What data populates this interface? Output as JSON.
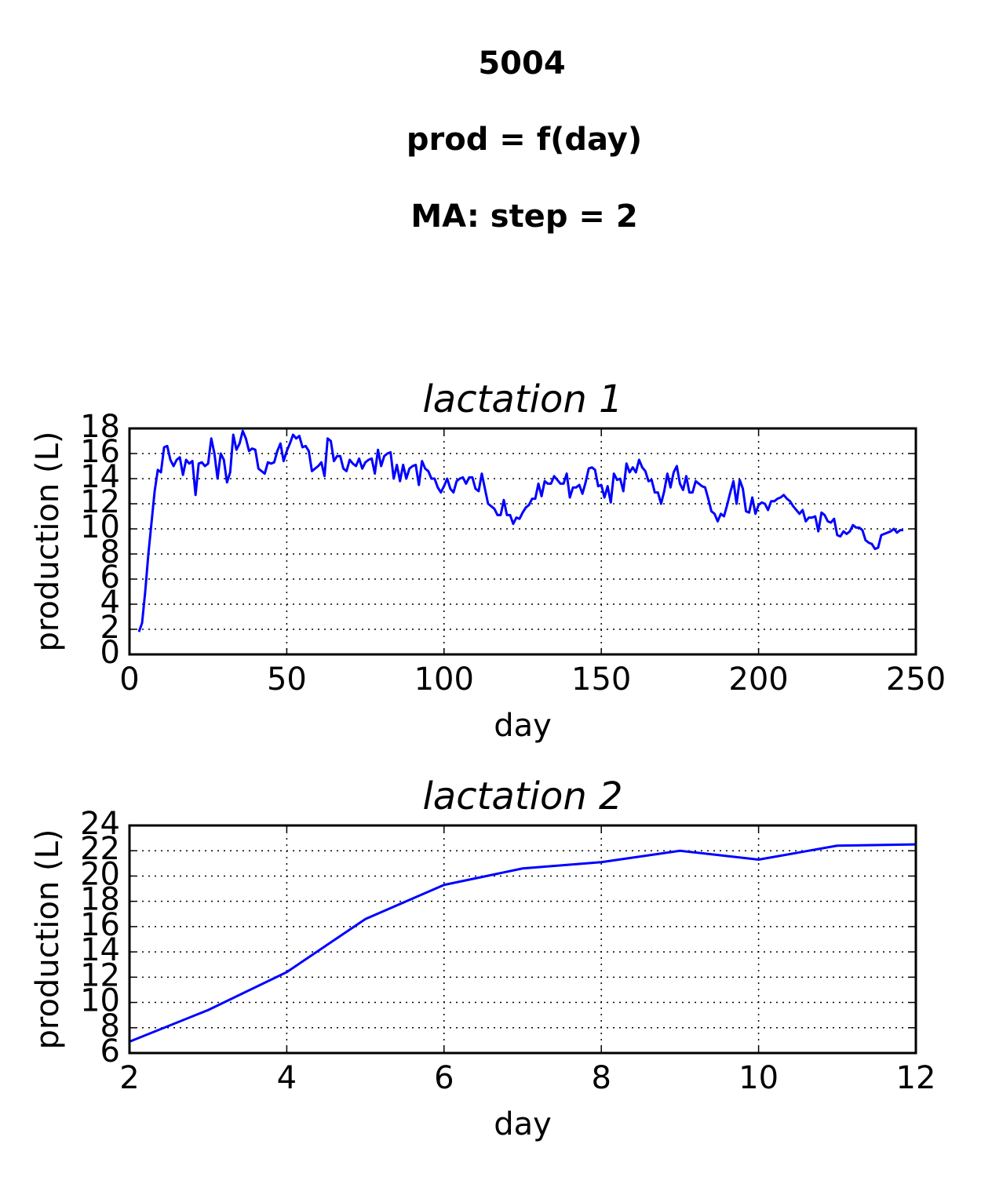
{
  "figure_title_lines": [
    "5004",
    "prod = f(day)",
    "MA: step = 2"
  ],
  "chart_data": [
    {
      "type": "line",
      "title": "lactation 1",
      "x_label": "day",
      "y_label": "production (L)",
      "color": "#0000ff",
      "grid": true,
      "xlim": [
        0,
        250
      ],
      "xticks": [
        0,
        50,
        100,
        150,
        200,
        250
      ],
      "ylim": [
        0,
        18
      ],
      "yticks": [
        0,
        2,
        4,
        6,
        8,
        10,
        12,
        14,
        16,
        18
      ],
      "x": [
        3,
        4,
        5,
        6,
        7,
        8,
        9,
        10,
        11,
        12,
        13,
        14,
        15,
        16,
        17,
        18,
        19,
        20,
        21,
        22,
        23,
        24,
        25,
        26,
        27,
        28,
        29,
        30,
        31,
        32,
        33,
        34,
        35,
        36,
        37,
        38,
        39,
        40,
        41,
        42,
        43,
        44,
        45,
        46,
        47,
        48,
        49,
        50,
        51,
        52,
        53,
        54,
        55,
        56,
        57,
        58,
        59,
        60,
        61,
        62,
        63,
        64,
        65,
        66,
        67,
        68,
        69,
        70,
        71,
        72,
        73,
        74,
        75,
        76,
        77,
        78,
        79,
        80,
        81,
        82,
        83,
        84,
        85,
        86,
        87,
        88,
        89,
        90,
        91,
        92,
        93,
        94,
        95,
        96,
        97,
        98,
        99,
        100,
        101,
        102,
        103,
        104,
        105,
        106,
        107,
        108,
        109,
        110,
        111,
        112,
        113,
        114,
        115,
        116,
        117,
        118,
        119,
        120,
        121,
        122,
        123,
        124,
        125,
        126,
        127,
        128,
        129,
        130,
        131,
        132,
        133,
        134,
        135,
        136,
        137,
        138,
        139,
        140,
        141,
        142,
        143,
        144,
        145,
        146,
        147,
        148,
        149,
        150,
        151,
        152,
        153,
        154,
        155,
        156,
        157,
        158,
        159,
        160,
        161,
        162,
        163,
        164,
        165,
        166,
        167,
        168,
        169,
        170,
        171,
        172,
        173,
        174,
        175,
        176,
        177,
        178,
        179,
        180,
        181,
        182,
        183,
        184,
        185,
        186,
        187,
        188,
        189,
        190,
        191,
        192,
        193,
        194,
        195,
        196,
        197,
        198,
        199,
        200,
        201,
        202,
        203,
        204,
        205,
        206,
        207,
        208,
        209,
        210,
        211,
        212,
        213,
        214,
        215,
        216,
        217,
        218,
        219,
        220,
        221,
        222,
        223,
        224,
        225,
        226,
        227,
        228,
        229,
        230,
        231,
        232,
        233,
        234,
        235,
        236,
        237,
        238,
        239,
        240,
        241,
        242,
        243,
        244,
        245,
        246
      ],
      "values": [
        1.8,
        2.5,
        5,
        8,
        10.5,
        13,
        14.7,
        14.5,
        16.5,
        16.6,
        15.5,
        15,
        15.5,
        15.7,
        14.3,
        15.5,
        15.2,
        15.4,
        12.7,
        15.2,
        15.3,
        15,
        15.2,
        17.2,
        16,
        14,
        16,
        15.5,
        13.7,
        14.5,
        17.5,
        16.3,
        16.8,
        17.8,
        17.2,
        16.2,
        16.4,
        16.3,
        14.8,
        14.6,
        14.4,
        15.3,
        15.2,
        15.3,
        16.2,
        16.8,
        15.4,
        16.2,
        16.8,
        17.5,
        17.2,
        17.4,
        16.5,
        16.6,
        16.2,
        14.6,
        14.8,
        15,
        15.3,
        14.2,
        17.2,
        17,
        15.4,
        15.8,
        15.8,
        14.8,
        14.6,
        15.5,
        15.2,
        15,
        15.6,
        14.8,
        15.3,
        15.5,
        15.6,
        14.4,
        16.3,
        15,
        15.8,
        16,
        16.1,
        14,
        15.1,
        13.8,
        15.1,
        14,
        14.8,
        15,
        15.1,
        13.5,
        15.4,
        14.8,
        14.6,
        14,
        14,
        13.3,
        12.9,
        13.4,
        14,
        13.2,
        12.9,
        13.8,
        14,
        14.1,
        13.6,
        14.1,
        14.1,
        13.2,
        13,
        14.4,
        13.2,
        12,
        11.8,
        11.6,
        11.1,
        11.1,
        12.3,
        11.1,
        11.1,
        10.4,
        10.9,
        10.8,
        11.3,
        11.7,
        11.9,
        12.4,
        12.4,
        13.6,
        12.6,
        13.8,
        13.6,
        13.6,
        14.2,
        13.9,
        13.6,
        13.6,
        14.4,
        12.5,
        13.3,
        13.3,
        13.5,
        12.8,
        13.7,
        14.8,
        14.9,
        14.7,
        13.4,
        13.5,
        12.5,
        13.4,
        12.1,
        14.4,
        13.9,
        14,
        13,
        15.2,
        14.5,
        14.9,
        14.5,
        15.5,
        14.9,
        14.6,
        13.8,
        13.9,
        12.9,
        12.9,
        12,
        13,
        14.4,
        13.3,
        14.5,
        15,
        13.6,
        13.1,
        14.2,
        12.9,
        12.9,
        13.8,
        13.6,
        13.4,
        13.3,
        12.4,
        11.4,
        11.2,
        10.6,
        11.2,
        11,
        11.9,
        12.9,
        13.8,
        12,
        13.9,
        13.2,
        11.4,
        11.3,
        12.5,
        11.2,
        11.9,
        12.1,
        12,
        11.5,
        12.2,
        12.2,
        12.4,
        12.5,
        12.7,
        12.4,
        12.2,
        11.8,
        11.5,
        11.2,
        11.5,
        10.6,
        10.9,
        10.9,
        11,
        9.8,
        11.3,
        11.1,
        10.6,
        10.5,
        10.8,
        9.5,
        9.4,
        9.8,
        9.6,
        9.8,
        10.3,
        10.1,
        10.1,
        9.9,
        9.1,
        8.9,
        8.8,
        8.4,
        8.5,
        9.5,
        9.6,
        9.7,
        9.8,
        10,
        9.7,
        9.9,
        9.9
      ]
    },
    {
      "type": "line",
      "title": "lactation 2",
      "x_label": "day",
      "y_label": "production (L)",
      "color": "#0000ff",
      "grid": true,
      "xlim": [
        2,
        12
      ],
      "xticks": [
        2,
        4,
        6,
        8,
        10,
        12
      ],
      "ylim": [
        6,
        24
      ],
      "yticks": [
        6,
        8,
        10,
        12,
        14,
        16,
        18,
        20,
        22,
        24
      ],
      "x": [
        2,
        3,
        4,
        5,
        6,
        7,
        8,
        9,
        10,
        11,
        12
      ],
      "values": [
        6.9,
        9.4,
        12.4,
        16.6,
        19.3,
        20.6,
        21.1,
        22.0,
        21.3,
        22.4,
        22.5
      ]
    }
  ]
}
